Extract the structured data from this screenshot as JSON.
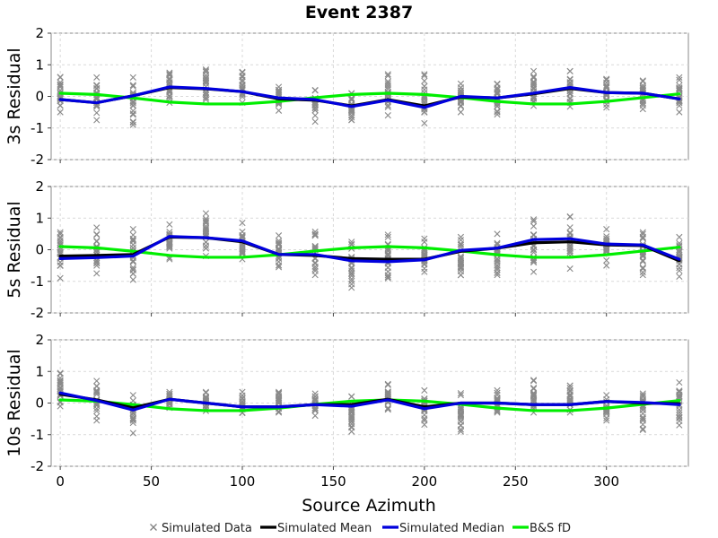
{
  "chart_data": {
    "type": "scatter",
    "title": "Event 2387",
    "xlabel": "Source Azimuth",
    "xlim": [
      -5,
      345
    ],
    "xticks": [
      0,
      50,
      100,
      150,
      200,
      250,
      300
    ],
    "ylim": [
      -2,
      2
    ],
    "yticks": [
      -2,
      -1,
      0,
      1,
      2
    ],
    "grid": true,
    "legend_position": "bottom",
    "legend": [
      {
        "name": "Simulated Data",
        "marker": "x",
        "color": "#808080"
      },
      {
        "name": "Simulated Mean",
        "marker": "line",
        "color": "#000000"
      },
      {
        "name": "Simulated Median",
        "marker": "line",
        "color": "#0000dd"
      },
      {
        "name": "B&S fD",
        "marker": "line",
        "color": "#00ee00"
      }
    ],
    "x": [
      0,
      20,
      40,
      60,
      80,
      100,
      120,
      140,
      160,
      180,
      200,
      220,
      240,
      260,
      280,
      300,
      320,
      340
    ],
    "panels": [
      {
        "ylabel": "3s Residual",
        "scatter_range": [
          [
            -0.5,
            0.6
          ],
          [
            -0.75,
            0.6
          ],
          [
            -0.8,
            0.6
          ],
          [
            -0.2,
            0.75
          ],
          [
            -0.1,
            0.85
          ],
          [
            -0.2,
            0.75
          ],
          [
            -0.45,
            0.3
          ],
          [
            -0.8,
            0.2
          ],
          [
            -0.75,
            0.1
          ],
          [
            -0.6,
            0.65
          ],
          [
            -0.85,
            0.7
          ],
          [
            -0.5,
            0.4
          ],
          [
            -0.5,
            0.4
          ],
          [
            -0.3,
            0.8
          ],
          [
            -0.2,
            0.8
          ],
          [
            -0.35,
            0.55
          ],
          [
            -0.4,
            0.5
          ],
          [
            -0.5,
            0.6
          ]
        ],
        "series": [
          {
            "name": "Simulated Mean",
            "color": "#000000",
            "values": [
              -0.1,
              -0.2,
              0.02,
              0.28,
              0.24,
              0.15,
              -0.08,
              -0.12,
              -0.3,
              -0.1,
              -0.3,
              -0.02,
              -0.05,
              0.08,
              0.25,
              0.12,
              0.1,
              -0.08
            ]
          },
          {
            "name": "Simulated Median",
            "color": "#0000dd",
            "values": [
              -0.1,
              -0.2,
              0.02,
              0.3,
              0.25,
              0.15,
              -0.05,
              -0.1,
              -0.32,
              -0.12,
              -0.35,
              0.0,
              -0.05,
              0.1,
              0.28,
              0.12,
              0.1,
              -0.08
            ]
          },
          {
            "name": "B&S fD",
            "color": "#00ee00",
            "values": [
              0.1,
              0.06,
              -0.05,
              -0.18,
              -0.24,
              -0.24,
              -0.16,
              -0.04,
              0.06,
              0.1,
              0.06,
              -0.04,
              -0.16,
              -0.24,
              -0.24,
              -0.16,
              -0.04,
              0.08
            ]
          }
        ]
      },
      {
        "ylabel": "5s Residual",
        "scatter_range": [
          [
            -0.9,
            0.55
          ],
          [
            -0.75,
            0.7
          ],
          [
            -0.95,
            0.65
          ],
          [
            -0.3,
            0.8
          ],
          [
            -0.2,
            1.15
          ],
          [
            -0.3,
            0.85
          ],
          [
            -0.55,
            0.45
          ],
          [
            -0.8,
            0.5
          ],
          [
            -1.2,
            0.25
          ],
          [
            -0.9,
            0.4
          ],
          [
            -0.7,
            0.35
          ],
          [
            -0.8,
            0.4
          ],
          [
            -0.8,
            0.5
          ],
          [
            -0.7,
            0.9
          ],
          [
            -0.6,
            1.05
          ],
          [
            -0.5,
            0.65
          ],
          [
            -0.8,
            0.55
          ],
          [
            -0.85,
            0.4
          ]
        ],
        "series": [
          {
            "name": "Simulated Mean",
            "color": "#000000",
            "values": [
              -0.2,
              -0.18,
              -0.15,
              0.4,
              0.38,
              0.25,
              -0.15,
              -0.18,
              -0.28,
              -0.3,
              -0.3,
              -0.05,
              0.05,
              0.22,
              0.25,
              0.15,
              0.13,
              -0.35
            ]
          },
          {
            "name": "Simulated Median",
            "color": "#0000dd",
            "values": [
              -0.28,
              -0.25,
              -0.2,
              0.42,
              0.38,
              0.28,
              -0.15,
              -0.15,
              -0.35,
              -0.38,
              -0.32,
              -0.02,
              0.05,
              0.32,
              0.35,
              0.18,
              0.15,
              -0.3
            ]
          },
          {
            "name": "B&S fD",
            "color": "#00ee00",
            "values": [
              0.1,
              0.06,
              -0.05,
              -0.18,
              -0.24,
              -0.24,
              -0.16,
              -0.04,
              0.06,
              0.1,
              0.06,
              -0.04,
              -0.16,
              -0.24,
              -0.24,
              -0.16,
              -0.04,
              0.08
            ]
          }
        ]
      },
      {
        "ylabel": "10s Residual",
        "scatter_range": [
          [
            -0.1,
            0.95
          ],
          [
            -0.55,
            0.7
          ],
          [
            -0.95,
            0.25
          ],
          [
            -0.15,
            0.35
          ],
          [
            -0.25,
            0.35
          ],
          [
            -0.3,
            0.35
          ],
          [
            -0.3,
            0.35
          ],
          [
            -0.4,
            0.3
          ],
          [
            -0.9,
            0.2
          ],
          [
            -0.2,
            0.6
          ],
          [
            -0.55,
            0.4
          ],
          [
            -0.9,
            0.25
          ],
          [
            -0.3,
            0.4
          ],
          [
            -0.3,
            0.7
          ],
          [
            -0.3,
            0.55
          ],
          [
            -0.55,
            0.25
          ],
          [
            -0.85,
            0.3
          ],
          [
            -0.7,
            0.65
          ]
        ],
        "series": [
          {
            "name": "Simulated Mean",
            "color": "#000000",
            "values": [
              0.28,
              0.1,
              -0.15,
              0.12,
              0.0,
              -0.12,
              -0.12,
              -0.05,
              -0.05,
              0.12,
              -0.12,
              0.0,
              0.0,
              -0.05,
              -0.05,
              0.05,
              0.0,
              -0.02
            ]
          },
          {
            "name": "Simulated Median",
            "color": "#0000dd",
            "values": [
              0.32,
              0.08,
              -0.22,
              0.12,
              0.0,
              -0.12,
              -0.12,
              -0.05,
              -0.1,
              0.1,
              -0.18,
              0.0,
              0.0,
              -0.05,
              -0.05,
              0.05,
              0.02,
              -0.05
            ]
          },
          {
            "name": "B&S fD",
            "color": "#00ee00",
            "values": [
              0.1,
              0.06,
              -0.05,
              -0.18,
              -0.24,
              -0.24,
              -0.16,
              -0.04,
              0.06,
              0.1,
              0.06,
              -0.04,
              -0.16,
              -0.24,
              -0.24,
              -0.16,
              -0.04,
              0.08
            ]
          }
        ]
      }
    ]
  }
}
